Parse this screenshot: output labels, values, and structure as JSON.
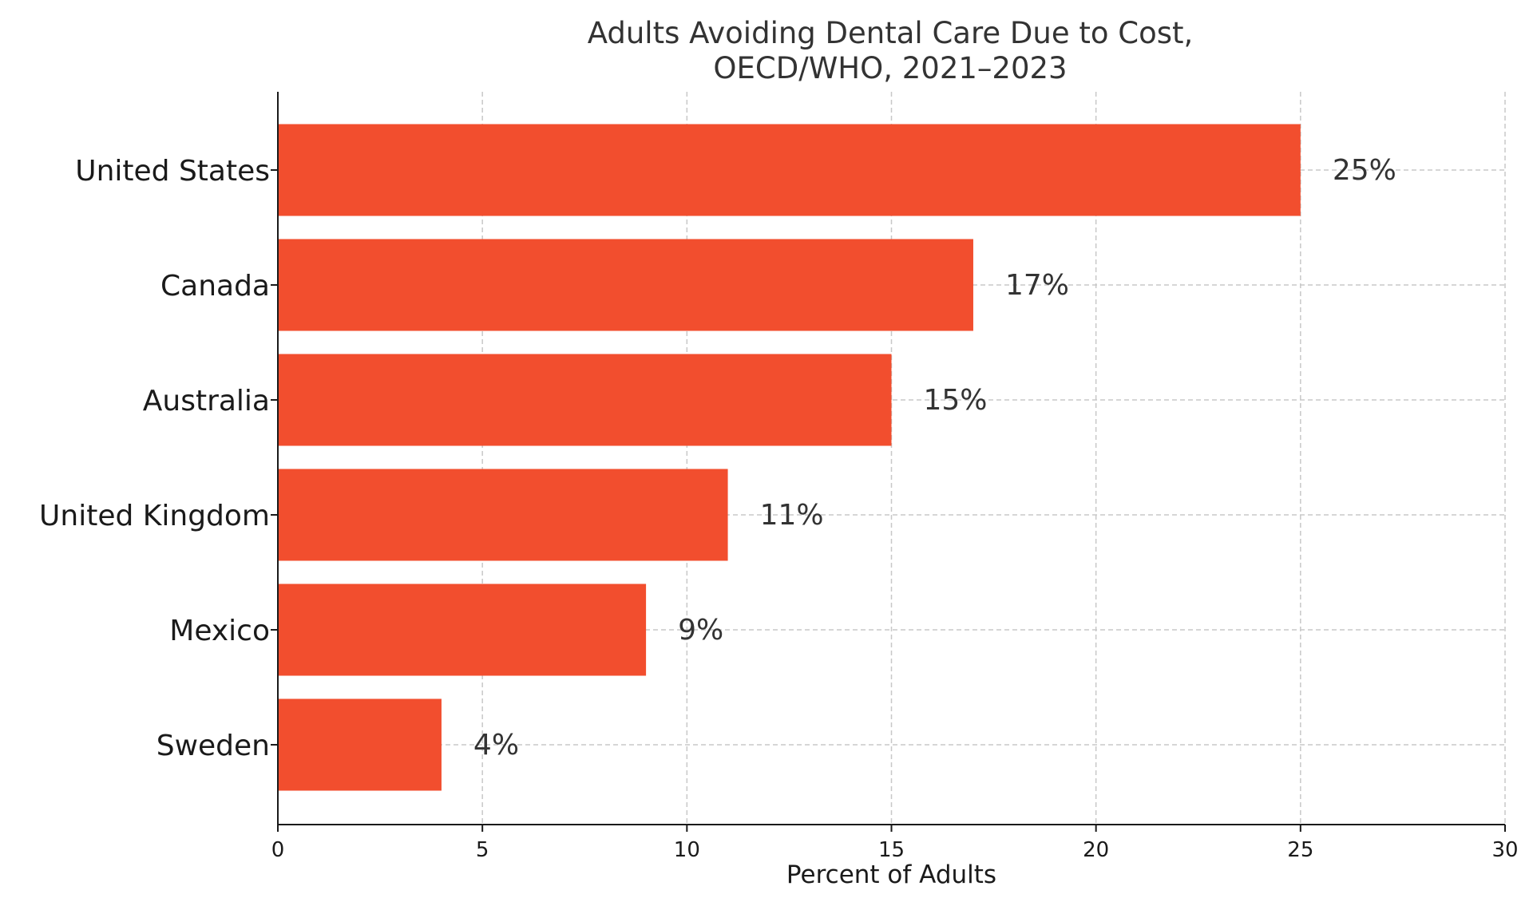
{
  "chart_data": {
    "type": "bar",
    "orientation": "horizontal",
    "title_lines": [
      "Adults Avoiding Dental Care Due to Cost,",
      "OECD/WHO, 2021–2023"
    ],
    "xlabel": "Percent of Adults",
    "ylabel": "",
    "categories": [
      "United States",
      "Canada",
      "Australia",
      "United Kingdom",
      "Mexico",
      "Sweden"
    ],
    "values": [
      25,
      17,
      15,
      11,
      9,
      4
    ],
    "value_labels": [
      "25%",
      "17%",
      "15%",
      "11%",
      "9%",
      "4%"
    ],
    "xlim": [
      0,
      30
    ],
    "xticks": [
      0,
      5,
      10,
      15,
      20,
      25,
      30
    ],
    "grid": true,
    "bar_color": "#f24e2e"
  }
}
